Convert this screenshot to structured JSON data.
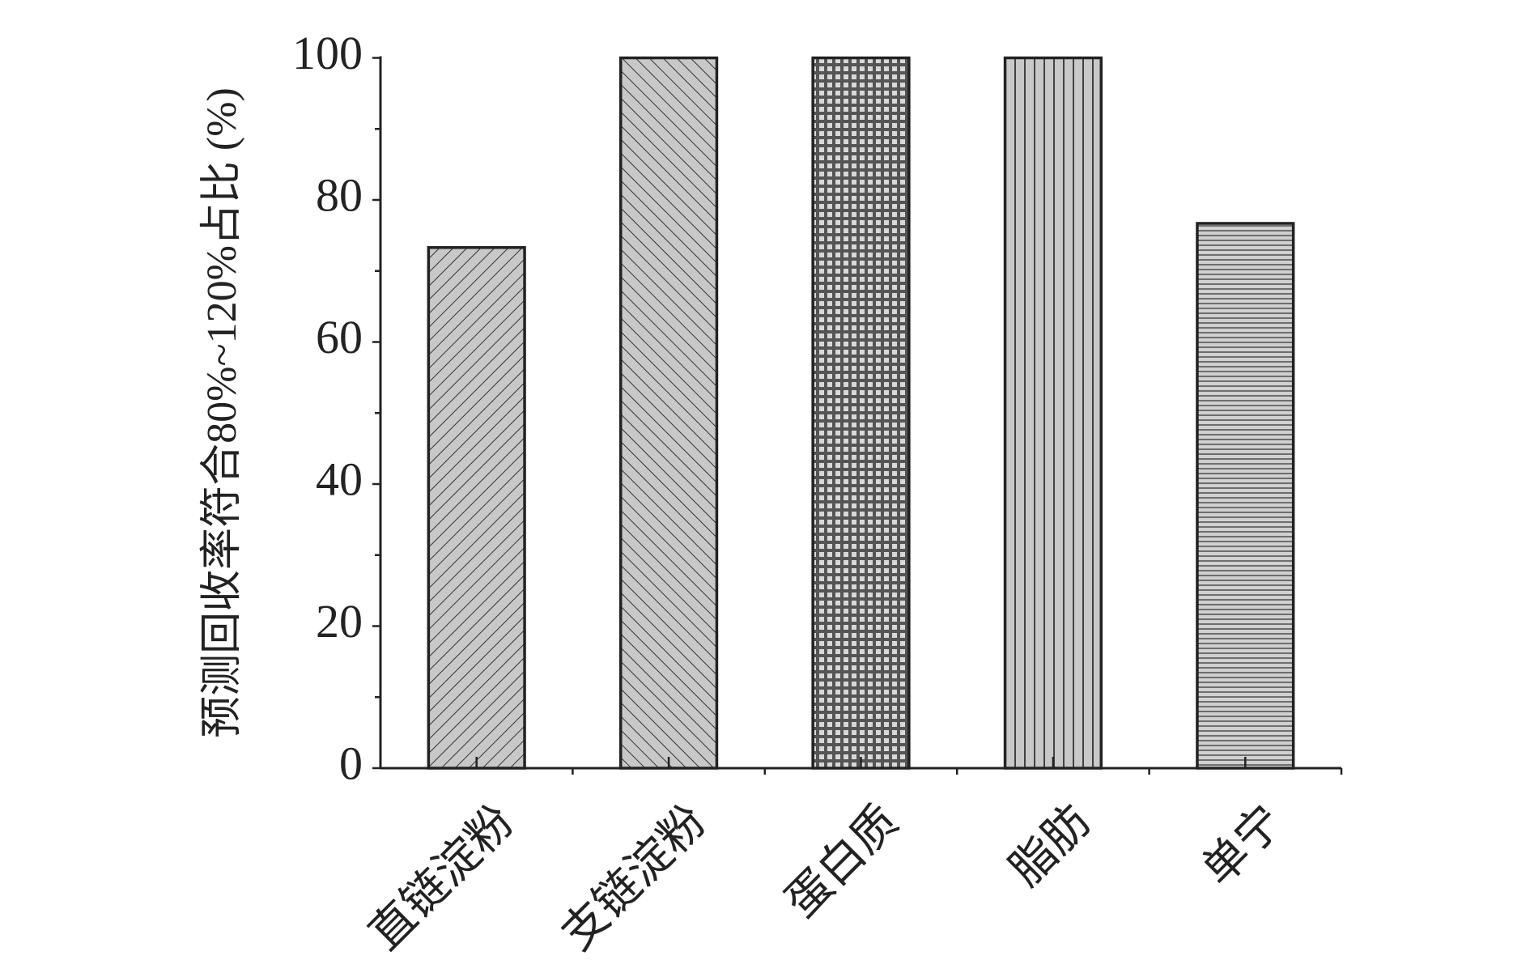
{
  "chart_data": {
    "type": "bar",
    "y_label": "预测回收率符合80%~120%占比 (%)",
    "categories": [
      "直链淀粉",
      "支链淀粉",
      "蛋白质",
      "脂肪",
      "单宁"
    ],
    "values": [
      73.3,
      100,
      100,
      100,
      76.7
    ],
    "color": "#c8c8c8",
    "patterns": [
      "diagonal-up",
      "diagonal-down",
      "grid",
      "vertical",
      "horizontal"
    ],
    "ylim": [
      0,
      100
    ],
    "yticks": [
      0,
      20,
      40,
      60,
      80,
      100
    ],
    "grid": false
  }
}
